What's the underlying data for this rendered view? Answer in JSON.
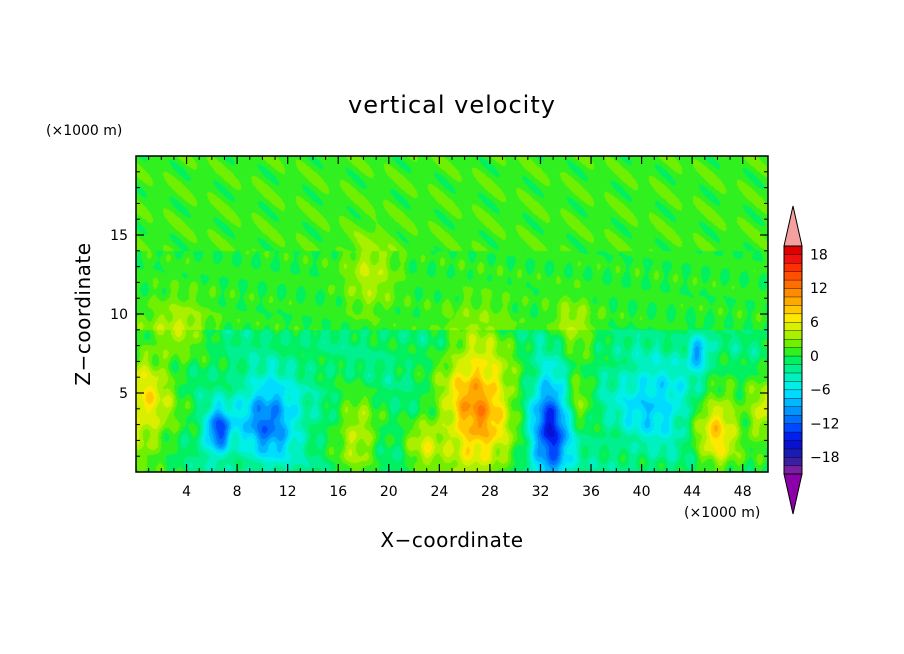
{
  "chart_data": {
    "type": "heatmap",
    "title": "vertical velocity",
    "xlabel": "X−coordinate",
    "ylabel": "Z−coordinate",
    "x_unit": "(×1000 m)",
    "y_unit": "(×1000 m)",
    "xlim": [
      0,
      50
    ],
    "ylim": [
      0,
      20
    ],
    "x_ticks": [
      4,
      8,
      12,
      16,
      20,
      24,
      28,
      32,
      36,
      40,
      44,
      48
    ],
    "y_ticks": [
      5,
      10,
      15
    ],
    "x_tick_labels": [
      "4",
      "8",
      "12",
      "16",
      "20",
      "24",
      "28",
      "32",
      "36",
      "40",
      "44",
      "48"
    ],
    "y_tick_labels": [
      "5",
      "10",
      "15"
    ],
    "colorbar": {
      "levels": [
        -21,
        -19.5,
        -18,
        -16.5,
        -15,
        -13.5,
        -12,
        -10.5,
        -9,
        -7.5,
        -6,
        -4.5,
        -3,
        -1.5,
        0,
        1.5,
        3,
        4.5,
        6,
        7.5,
        9,
        10.5,
        12,
        13.5,
        15,
        16.5,
        18,
        19.5,
        21
      ],
      "tick_values": [
        -18,
        -12,
        -6,
        0,
        6,
        12,
        18
      ],
      "tick_labels": [
        "−18",
        "−12",
        "−6",
        "0",
        "6",
        "12",
        "18"
      ],
      "colors": [
        "#7b1fa2",
        "#3a1fa0",
        "#1a1ab4",
        "#0a10d0",
        "#0020ee",
        "#0048ff",
        "#0070ff",
        "#0094ff",
        "#00b8ff",
        "#00dcff",
        "#00f0e8",
        "#00f0c0",
        "#00f090",
        "#00f060",
        "#30f020",
        "#70f000",
        "#a8f000",
        "#d8f000",
        "#ffe800",
        "#ffc800",
        "#ffa800",
        "#ff8c00",
        "#ff6e00",
        "#ff5000",
        "#ff3000",
        "#f01010",
        "#e00000",
        "#f4a0a0"
      ],
      "extend": "both",
      "min_color": "#8b00a8",
      "max_color": "#f4a0a0"
    },
    "features": [
      {
        "x": 0.6,
        "z": 4.3,
        "value": 8,
        "sx": 1.8,
        "sz": 2.4
      },
      {
        "x": 6.5,
        "z": 2.6,
        "value": -12,
        "sx": 0.7,
        "sz": 1.0
      },
      {
        "x": 10.5,
        "z": 3.3,
        "value": -10,
        "sx": 1.6,
        "sz": 1.8
      },
      {
        "x": 17.5,
        "z": 2.3,
        "value": 6,
        "sx": 1.2,
        "sz": 1.8
      },
      {
        "x": 22.7,
        "z": 1.6,
        "value": 5,
        "sx": 1.0,
        "sz": 1.3
      },
      {
        "x": 27.0,
        "z": 4.0,
        "value": 12,
        "sx": 2.0,
        "sz": 3.2
      },
      {
        "x": 32.8,
        "z": 2.6,
        "value": -13,
        "sx": 1.1,
        "sz": 2.6
      },
      {
        "x": 35.0,
        "z": 4.8,
        "value": 5,
        "sx": 0.8,
        "sz": 1.4
      },
      {
        "x": 41.0,
        "z": 4.4,
        "value": -6,
        "sx": 2.2,
        "sz": 1.8
      },
      {
        "x": 46.0,
        "z": 2.7,
        "value": 9,
        "sx": 1.3,
        "sz": 1.8
      },
      {
        "x": 49.6,
        "z": 3.8,
        "value": 6,
        "sx": 0.8,
        "sz": 1.8
      },
      {
        "x": 44.5,
        "z": 7.5,
        "value": -8,
        "sx": 0.6,
        "sz": 0.8
      },
      {
        "x": 18.5,
        "z": 12.5,
        "value": 4,
        "sx": 1.4,
        "sz": 1.6
      },
      {
        "x": 3.5,
        "z": 9.0,
        "value": 4,
        "sx": 1.6,
        "sz": 1.4
      },
      {
        "x": 34.5,
        "z": 9.0,
        "value": 4,
        "sx": 1.2,
        "sz": 1.4
      }
    ],
    "grid": false,
    "legend": "colorbar-right"
  }
}
